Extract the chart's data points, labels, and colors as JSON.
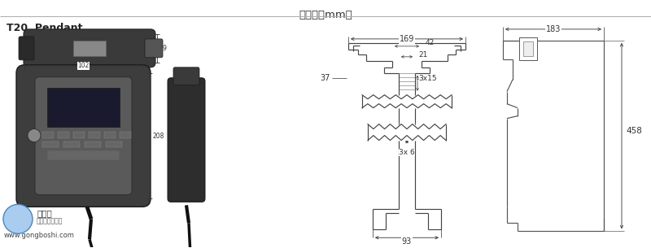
{
  "title": "（单位：mm）",
  "label_t20": "T20  Pendant",
  "watermark_url": "www.gongboshi.com",
  "bg_color": "#ffffff",
  "line_color": "#444444",
  "dim_color": "#333333",
  "title_fontsize": 9.5,
  "label_fontsize": 9,
  "dim_fontsize": 7,
  "dims_left": {
    "w169": "169",
    "w42": "42",
    "w21": "21",
    "d37": "37",
    "d3x15": "3x15",
    "d3x6": "3x 6",
    "w93": "93"
  },
  "dims_right": {
    "w183": "183",
    "h458": "458"
  },
  "figure_width": 8.0,
  "figure_height": 3.05
}
